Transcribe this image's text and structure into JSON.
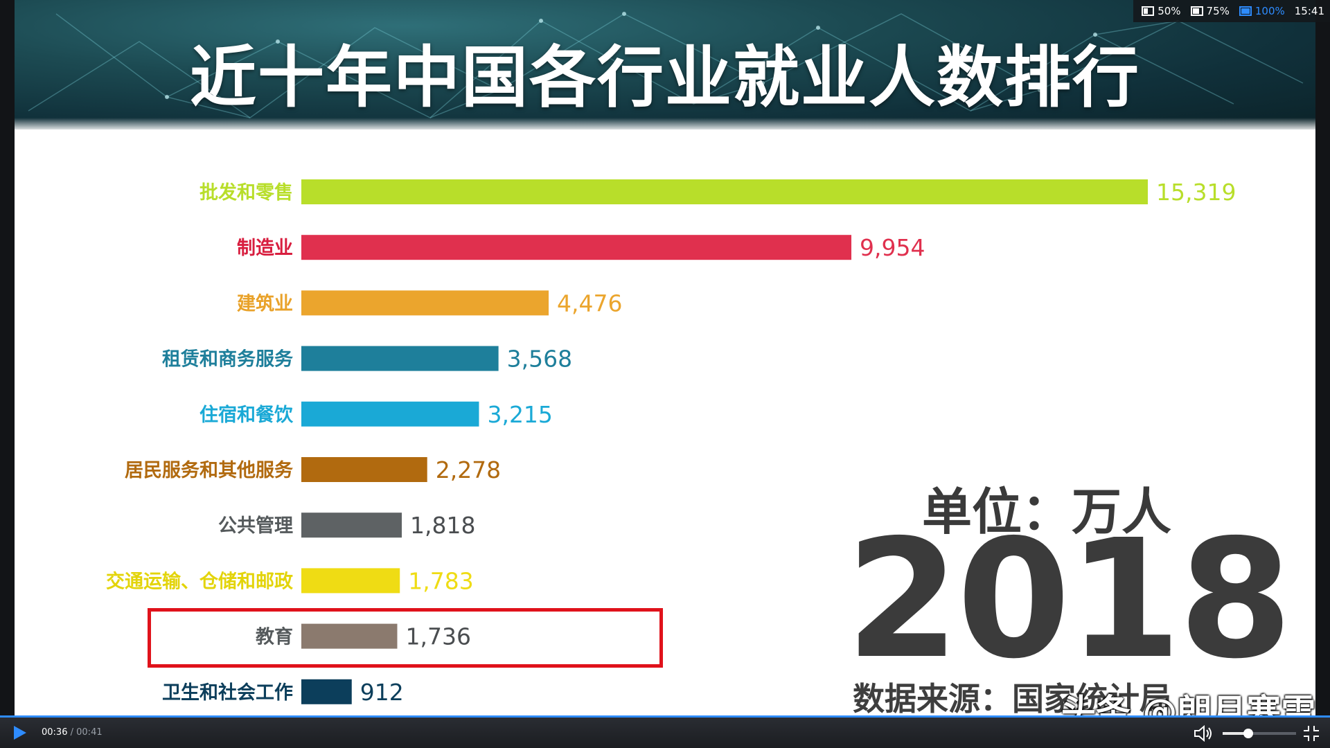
{
  "player": {
    "current_time": "00:36",
    "separator": "/",
    "duration": "00:41",
    "volume_level": 0.35
  },
  "status_bar": {
    "items": [
      {
        "label": "50%",
        "icon": "screen-50-icon"
      },
      {
        "label": "75%",
        "icon": "screen-75-icon"
      },
      {
        "label": "100%",
        "icon": "screen-100-icon",
        "active": true
      }
    ],
    "clock": "15:41"
  },
  "video": {
    "unit_label": "单位：万人",
    "year": "2018",
    "source_label": "数据来源：国家统计局",
    "watermark": "头条 @朗月寒雪",
    "highlight_color": "#e0121b"
  },
  "chart_data": {
    "type": "bar",
    "orientation": "horizontal",
    "title": "近十年中国各行业就业人数排行",
    "categories": [
      "批发和零售",
      "制造业",
      "建筑业",
      "租赁和商务服务",
      "住宿和餐饮",
      "居民服务和其他服务",
      "公共管理",
      "交通运输、仓储和邮政",
      "教育",
      "卫生和社会工作"
    ],
    "values": [
      15319,
      9954,
      4476,
      3568,
      3215,
      2278,
      1818,
      1783,
      1736,
      912
    ],
    "value_labels": [
      "15,319",
      "9,954",
      "4,476",
      "3,568",
      "3,215",
      "2,278",
      "1,818",
      "1,783",
      "1,736",
      "912"
    ],
    "colors": [
      "#b8de2a",
      "#e0304e",
      "#eba52d",
      "#1e7f9b",
      "#1aa9d6",
      "#b16a0f",
      "#5e6264",
      "#efdc14",
      "#8b7a6e",
      "#0c3e5b"
    ],
    "label_colors": [
      "#b8de2a",
      "#d81e3f",
      "#e9a22a",
      "#1e7f9b",
      "#1aa9d6",
      "#b16a0f",
      "#555a5c",
      "#e3d40a",
      "#555a5c",
      "#0c3e5b"
    ],
    "highlighted_category": "教育",
    "xlim": [
      0,
      15319
    ],
    "grid": false,
    "legend": "none"
  }
}
